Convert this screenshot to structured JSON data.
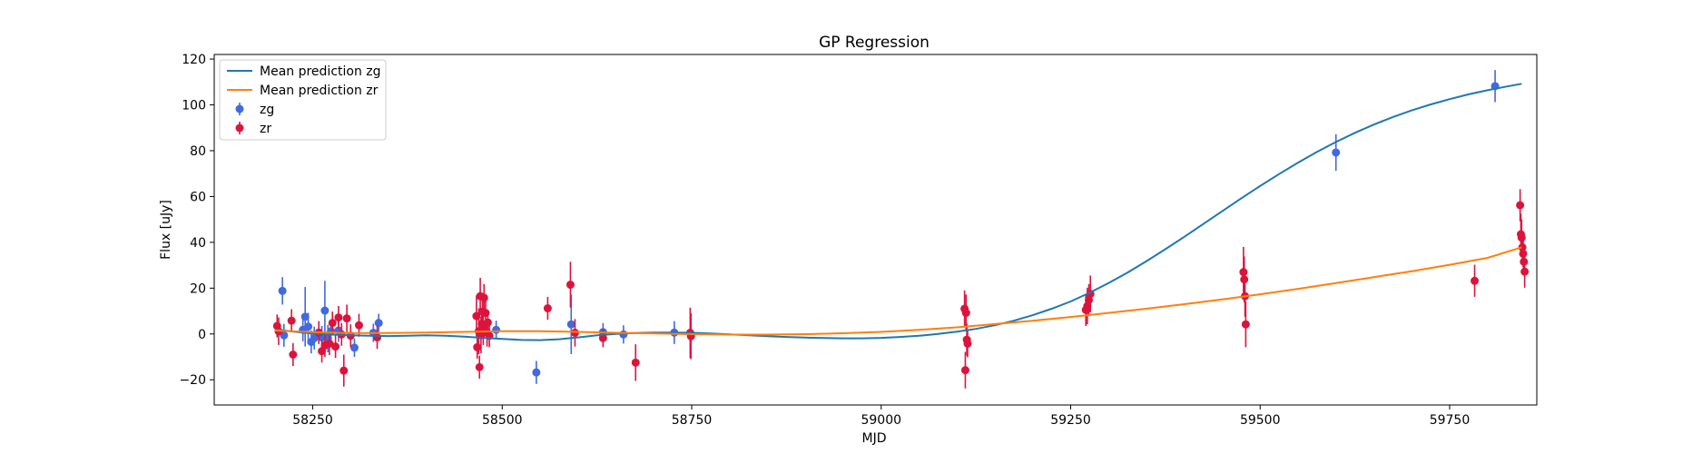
{
  "chart_data": {
    "type": "scatter",
    "title": "GP Regression",
    "xlabel": "MJD",
    "ylabel": "Flux [uJy]",
    "xlim": [
      58120,
      59865
    ],
    "ylim": [
      -31,
      122
    ],
    "xticks": [
      58250,
      58500,
      58750,
      59000,
      59250,
      59500,
      59750
    ],
    "yticks": [
      -20,
      0,
      20,
      40,
      60,
      80,
      100,
      120
    ],
    "grid": false,
    "legend_position": "top-left",
    "series": [
      {
        "name": "Mean prediction zg",
        "kind": "line",
        "color": "#1f77b4",
        "x": [
          58200,
          58225,
          58250,
          58275,
          58300,
          58325,
          58350,
          58375,
          58400,
          58425,
          58450,
          58475,
          58500,
          58525,
          58550,
          58575,
          58600,
          58625,
          58650,
          58675,
          58700,
          58725,
          58750,
          58775,
          58800,
          58825,
          58850,
          58875,
          58900,
          58925,
          58950,
          58975,
          59000,
          59025,
          59050,
          59075,
          59100,
          59125,
          59150,
          59175,
          59200,
          59225,
          59250,
          59275,
          59300,
          59325,
          59350,
          59375,
          59400,
          59425,
          59450,
          59475,
          59500,
          59525,
          59550,
          59575,
          59600,
          59625,
          59650,
          59675,
          59700,
          59725,
          59750,
          59775,
          59800,
          59825,
          59845
        ],
        "y": [
          2,
          1,
          0.2,
          -0.3,
          -0.6,
          -0.8,
          -0.9,
          -0.8,
          -0.6,
          -0.8,
          -1.2,
          -1.7,
          -2.2,
          -2.6,
          -2.7,
          -2.3,
          -1.5,
          -0.6,
          0,
          0.4,
          0.6,
          0.6,
          0.5,
          0.2,
          -0.2,
          -0.6,
          -1,
          -1.3,
          -1.6,
          -1.8,
          -1.9,
          -1.9,
          -1.7,
          -1.3,
          -0.8,
          0,
          1,
          2.2,
          3.8,
          5.8,
          8.2,
          11,
          14.2,
          18,
          22.2,
          26.8,
          31.8,
          37,
          42.4,
          48,
          53.6,
          59.2,
          64.6,
          69.8,
          74.8,
          79.5,
          83.8,
          87.8,
          91.4,
          94.7,
          97.6,
          100.2,
          102.5,
          104.6,
          106.4,
          108,
          109.2
        ]
      },
      {
        "name": "Mean prediction zr",
        "kind": "line",
        "color": "#ff7f0e",
        "x": [
          58200,
          58250,
          58300,
          58350,
          58400,
          58450,
          58500,
          58550,
          58600,
          58650,
          58700,
          58750,
          58800,
          58850,
          58900,
          58950,
          59000,
          59050,
          59100,
          59150,
          59200,
          59250,
          59300,
          59350,
          59400,
          59450,
          59500,
          59550,
          59600,
          59650,
          59700,
          59750,
          59800,
          59845
        ],
        "y": [
          1.5,
          0.8,
          0.4,
          0.4,
          0.6,
          0.9,
          1.2,
          1.2,
          0.9,
          0.5,
          0.2,
          -0.1,
          -0.3,
          -0.3,
          -0.1,
          0.3,
          0.9,
          1.8,
          2.9,
          4.3,
          5.8,
          7.4,
          9.2,
          11,
          13,
          15.1,
          17.3,
          19.7,
          22.2,
          24.8,
          27.4,
          30.2,
          33.2,
          37.8
        ]
      },
      {
        "name": "zg",
        "kind": "errorbar",
        "color": "#4169e1",
        "points": [
          {
            "x": 58210,
            "y": 18.8,
            "err": 6
          },
          {
            "x": 58212,
            "y": -0.6,
            "err": 5
          },
          {
            "x": 58237,
            "y": 1.8,
            "err": 5
          },
          {
            "x": 58240,
            "y": 7.5,
            "err": 13
          },
          {
            "x": 58244,
            "y": 3.2,
            "err": 6
          },
          {
            "x": 58248,
            "y": -3.5,
            "err": 5
          },
          {
            "x": 58252,
            "y": -1.8,
            "err": 5
          },
          {
            "x": 58262,
            "y": -1.5,
            "err": 5
          },
          {
            "x": 58266,
            "y": 10.2,
            "err": 13
          },
          {
            "x": 58270,
            "y": -2,
            "err": 6
          },
          {
            "x": 58274,
            "y": 1.2,
            "err": 5
          },
          {
            "x": 58284,
            "y": 1.5,
            "err": 5
          },
          {
            "x": 58305,
            "y": -6,
            "err": 4
          },
          {
            "x": 58330,
            "y": 0.5,
            "err": 4
          },
          {
            "x": 58337,
            "y": 4.8,
            "err": 4
          },
          {
            "x": 58492,
            "y": 1.8,
            "err": 4
          },
          {
            "x": 58545,
            "y": -16.8,
            "err": 5
          },
          {
            "x": 58591,
            "y": 4.2,
            "err": 13
          },
          {
            "x": 58633,
            "y": 0.8,
            "err": 4
          },
          {
            "x": 58660,
            "y": -0.2,
            "err": 4
          },
          {
            "x": 58727,
            "y": 0.6,
            "err": 5
          },
          {
            "x": 59600,
            "y": 79.2,
            "err": 8
          },
          {
            "x": 59810,
            "y": 108.2,
            "err": 7
          }
        ]
      },
      {
        "name": "zr",
        "kind": "errorbar",
        "color": "#dc143c",
        "points": [
          {
            "x": 58203,
            "y": 3.5,
            "err": 5
          },
          {
            "x": 58205,
            "y": 1.2,
            "err": 6
          },
          {
            "x": 58222,
            "y": 5.8,
            "err": 5
          },
          {
            "x": 58224,
            "y": -9,
            "err": 5
          },
          {
            "x": 58258,
            "y": 0.6,
            "err": 5
          },
          {
            "x": 58262,
            "y": -7.5,
            "err": 5
          },
          {
            "x": 58266,
            "y": -5,
            "err": 5
          },
          {
            "x": 58272,
            "y": -4.2,
            "err": 5
          },
          {
            "x": 58276,
            "y": 4.8,
            "err": 5
          },
          {
            "x": 58280,
            "y": -5.5,
            "err": 5
          },
          {
            "x": 58284,
            "y": 7.2,
            "err": 5
          },
          {
            "x": 58288,
            "y": -0.2,
            "err": 5
          },
          {
            "x": 58291,
            "y": -16,
            "err": 7
          },
          {
            "x": 58295,
            "y": 6.8,
            "err": 6
          },
          {
            "x": 58300,
            "y": -0.8,
            "err": 5
          },
          {
            "x": 58311,
            "y": 3.8,
            "err": 5
          },
          {
            "x": 58335,
            "y": -1.5,
            "err": 5
          },
          {
            "x": 58466,
            "y": 7.8,
            "err": 9
          },
          {
            "x": 58467,
            "y": -5.8,
            "err": 5
          },
          {
            "x": 58469,
            "y": 1.2,
            "err": 10
          },
          {
            "x": 58470,
            "y": -14.5,
            "err": 5
          },
          {
            "x": 58471,
            "y": 16.5,
            "err": 8
          },
          {
            "x": 58472,
            "y": -0.5,
            "err": 8
          },
          {
            "x": 58473,
            "y": 4.5,
            "err": 6
          },
          {
            "x": 58474,
            "y": 9.8,
            "err": 8
          },
          {
            "x": 58475,
            "y": 2.2,
            "err": 7
          },
          {
            "x": 58476,
            "y": 15.8,
            "err": 6
          },
          {
            "x": 58478,
            "y": 9.2,
            "err": 6
          },
          {
            "x": 58480,
            "y": 0.5,
            "err": 6
          },
          {
            "x": 58481,
            "y": 5,
            "err": 5
          },
          {
            "x": 58483,
            "y": -0.8,
            "err": 5
          },
          {
            "x": 58560,
            "y": 11.2,
            "err": 5
          },
          {
            "x": 58590,
            "y": 21.5,
            "err": 10
          },
          {
            "x": 58596,
            "y": 0.5,
            "err": 6
          },
          {
            "x": 58633,
            "y": -1.8,
            "err": 4
          },
          {
            "x": 58676,
            "y": -12.5,
            "err": 8
          },
          {
            "x": 58748,
            "y": 0.5,
            "err": 11
          },
          {
            "x": 58749,
            "y": -1,
            "err": 10
          },
          {
            "x": 59110,
            "y": 11,
            "err": 8
          },
          {
            "x": 59111,
            "y": -15.8,
            "err": 8
          },
          {
            "x": 59112,
            "y": 9.2,
            "err": 8
          },
          {
            "x": 59113,
            "y": -2.5,
            "err": 7
          },
          {
            "x": 59114,
            "y": -4.2,
            "err": 6
          },
          {
            "x": 59270,
            "y": 10.5,
            "err": 7
          },
          {
            "x": 59272,
            "y": 12.2,
            "err": 8
          },
          {
            "x": 59274,
            "y": 14.8,
            "err": 7
          },
          {
            "x": 59276,
            "y": 17.5,
            "err": 8
          },
          {
            "x": 59478,
            "y": 27,
            "err": 11
          },
          {
            "x": 59479,
            "y": 23.8,
            "err": 10
          },
          {
            "x": 59480,
            "y": 16.5,
            "err": 9
          },
          {
            "x": 59481,
            "y": 4.2,
            "err": 10
          },
          {
            "x": 59783,
            "y": 23.2,
            "err": 7
          },
          {
            "x": 59843,
            "y": 56.2,
            "err": 7
          },
          {
            "x": 59844,
            "y": 43.5,
            "err": 9
          },
          {
            "x": 59845,
            "y": 42,
            "err": 8
          },
          {
            "x": 59846,
            "y": 37.8,
            "err": 7
          },
          {
            "x": 59847,
            "y": 35,
            "err": 6
          },
          {
            "x": 59848,
            "y": 31.5,
            "err": 6
          },
          {
            "x": 59849,
            "y": 27.2,
            "err": 7
          }
        ]
      }
    ]
  }
}
